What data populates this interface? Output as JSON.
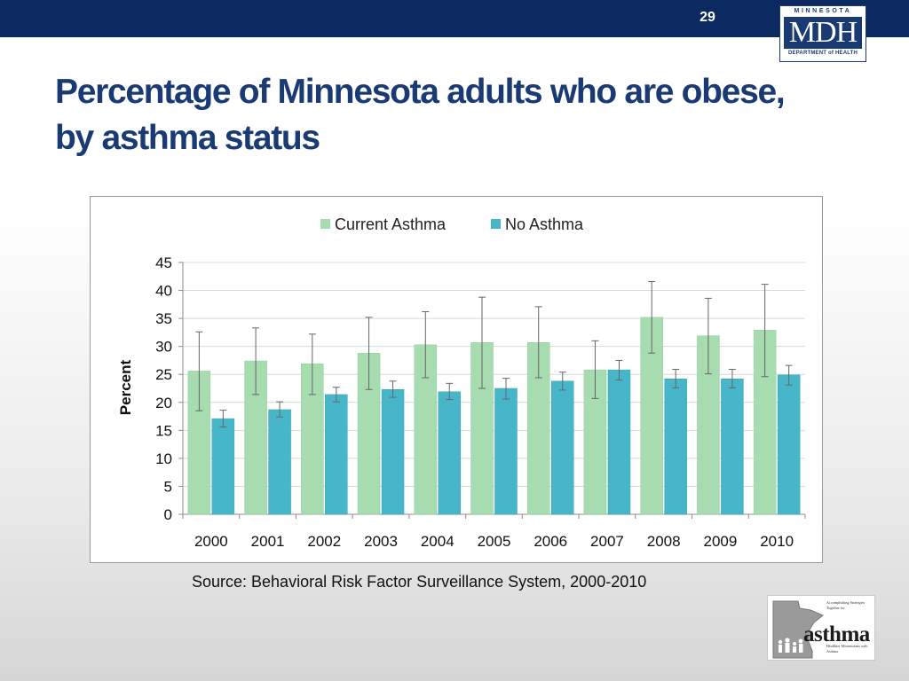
{
  "slide": {
    "number": "29",
    "title": "Percentage of Minnesota adults who are obese, by asthma status",
    "source": "Source: Behavioral Risk Factor Surveillance System, 2000-2010"
  },
  "mdh_logo": {
    "top_text": "MINNESOTA",
    "main_text": "MDH",
    "bottom_text": "DEPARTMENT of HEALTH"
  },
  "asthma_logo": {
    "word": "asthma",
    "tagline_top": "Accomplishing Strategies Together for",
    "tagline_bottom": "Healthier Minnesotans with Asthma"
  },
  "colors": {
    "header_bar": "#0b2a61",
    "title": "#1a3a74",
    "current_asthma": "#a6dcb0",
    "no_asthma": "#47b6c8"
  },
  "chart_data": {
    "type": "bar",
    "title": "",
    "xlabel": "",
    "ylabel": "Percent",
    "ylim": [
      0,
      45
    ],
    "yticks": [
      0,
      5,
      10,
      15,
      20,
      25,
      30,
      35,
      40,
      45
    ],
    "grid": true,
    "legend_position": "top",
    "categories": [
      "2000",
      "2001",
      "2002",
      "2003",
      "2004",
      "2005",
      "2006",
      "2007",
      "2008",
      "2009",
      "2010"
    ],
    "series": [
      {
        "name": "Current Asthma",
        "values": [
          25.6,
          27.4,
          26.9,
          28.8,
          30.3,
          30.7,
          30.7,
          25.8,
          35.2,
          31.9,
          32.9
        ],
        "error_low": [
          18.5,
          21.4,
          21.4,
          22.3,
          24.4,
          22.5,
          24.4,
          20.7,
          28.8,
          25.1,
          24.6
        ],
        "error_high": [
          32.6,
          33.3,
          32.2,
          35.2,
          36.2,
          38.8,
          37.1,
          31.0,
          41.6,
          38.6,
          41.1
        ]
      },
      {
        "name": "No Asthma",
        "values": [
          17.1,
          18.7,
          21.4,
          22.3,
          21.9,
          22.5,
          23.8,
          25.8,
          24.2,
          24.2,
          24.9
        ],
        "error_low": [
          15.6,
          17.4,
          20.1,
          20.9,
          20.5,
          20.6,
          22.2,
          24.0,
          22.6,
          22.6,
          23.1
        ],
        "error_high": [
          18.6,
          20.1,
          22.7,
          23.8,
          23.4,
          24.3,
          25.4,
          27.5,
          25.9,
          25.9,
          26.6
        ]
      }
    ]
  }
}
